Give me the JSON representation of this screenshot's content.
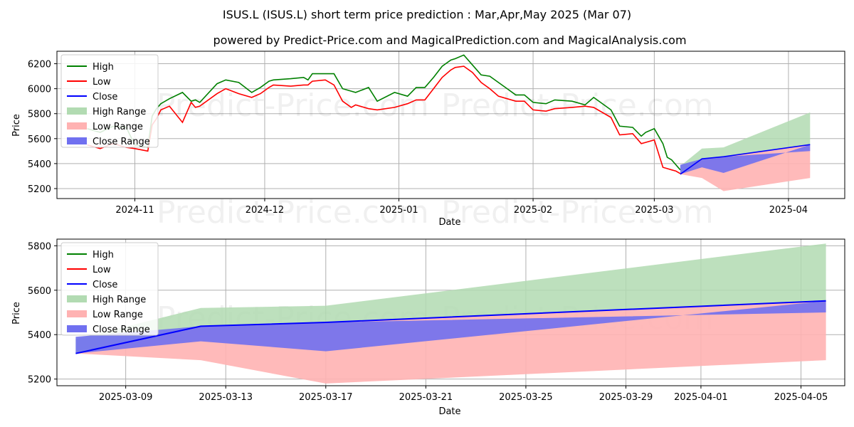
{
  "figure": {
    "title": "ISUS.L (ISUS.L) short term price prediction : Mar,Apr,May 2025 (Mar 07)",
    "subtitle": "powered by Predict-Price.com and MagicalPrediction.com and MagicalAnalysis.com",
    "watermark": "Predict-Price.com"
  },
  "colors": {
    "high": "#008000",
    "low": "#ff0000",
    "close": "#0000ff",
    "high_range": "#b2dbb2",
    "low_range": "#ffb2b2",
    "close_range": "#7070f0"
  },
  "legend": [
    "High",
    "Low",
    "Close",
    "High Range",
    "Low Range",
    "Close Range"
  ],
  "chart_data": [
    {
      "type": "line",
      "xlabel": "Date",
      "ylabel": "Price",
      "grid": true,
      "legend_position": "top-left",
      "xlim": [
        "2024-10-14",
        "2025-04-14"
      ],
      "ylim": [
        5120,
        6300
      ],
      "x_ticks": [
        "2024-11",
        "2024-12",
        "2025-01",
        "2025-02",
        "2025-03",
        "2025-04"
      ],
      "x_tick_dates": [
        "2024-11-01",
        "2024-12-01",
        "2025-01-01",
        "2025-02-01",
        "2025-03-01",
        "2025-04-01"
      ],
      "y_ticks": [
        5200,
        5400,
        5600,
        5800,
        6000,
        6200
      ],
      "history": {
        "dates": [
          "2024-10-21",
          "2024-10-24",
          "2024-10-27",
          "2024-10-30",
          "2024-11-01",
          "2024-11-04",
          "2024-11-05",
          "2024-11-06",
          "2024-11-07",
          "2024-11-09",
          "2024-11-12",
          "2024-11-14",
          "2024-11-15",
          "2024-11-16",
          "2024-11-20",
          "2024-11-22",
          "2024-11-25",
          "2024-11-28",
          "2024-11-30",
          "2024-12-02",
          "2024-12-03",
          "2024-12-07",
          "2024-12-10",
          "2024-12-11",
          "2024-12-12",
          "2024-12-15",
          "2024-12-17",
          "2024-12-19",
          "2024-12-21",
          "2024-12-22",
          "2024-12-25",
          "2024-12-27",
          "2024-12-31",
          "2025-01-03",
          "2025-01-05",
          "2025-01-07",
          "2025-01-09",
          "2025-01-11",
          "2025-01-13",
          "2025-01-14",
          "2025-01-16",
          "2025-01-18",
          "2025-01-20",
          "2025-01-22",
          "2025-01-24",
          "2025-01-26",
          "2025-01-28",
          "2025-01-30",
          "2025-02-01",
          "2025-02-04",
          "2025-02-06",
          "2025-02-10",
          "2025-02-13",
          "2025-02-15",
          "2025-02-19",
          "2025-02-21",
          "2025-02-24",
          "2025-02-26",
          "2025-02-27",
          "2025-03-01",
          "2025-03-03",
          "2025-03-04",
          "2025-03-05",
          "2025-03-06",
          "2025-03-07"
        ],
        "high": [
          5680,
          5650,
          5700,
          5690,
          5550,
          5530,
          5780,
          5840,
          5880,
          5920,
          5970,
          5900,
          5910,
          5890,
          6040,
          6070,
          6050,
          5970,
          6010,
          6060,
          6070,
          6080,
          6090,
          6070,
          6120,
          6120,
          6120,
          6000,
          5980,
          5970,
          6010,
          5900,
          5970,
          5940,
          6010,
          6010,
          6090,
          6180,
          6230,
          6240,
          6270,
          6190,
          6110,
          6100,
          6050,
          6000,
          5950,
          5950,
          5890,
          5880,
          5910,
          5900,
          5870,
          5930,
          5830,
          5700,
          5690,
          5620,
          5650,
          5680,
          5560,
          5450,
          5430,
          5390,
          5350
        ],
        "low": [
          5550,
          5520,
          5560,
          5530,
          5520,
          5500,
          5710,
          5760,
          5830,
          5860,
          5730,
          5890,
          5850,
          5860,
          5960,
          6000,
          5960,
          5930,
          5960,
          6010,
          6030,
          6020,
          6030,
          6030,
          6060,
          6070,
          6030,
          5900,
          5850,
          5870,
          5840,
          5830,
          5850,
          5880,
          5910,
          5910,
          6000,
          6090,
          6150,
          6170,
          6180,
          6130,
          6050,
          6000,
          5940,
          5920,
          5900,
          5900,
          5830,
          5820,
          5840,
          5850,
          5860,
          5850,
          5770,
          5630,
          5640,
          5560,
          5570,
          5590,
          5370,
          5360,
          5350,
          5340,
          5320
        ]
      }
    },
    {
      "type": "area",
      "xlabel": "Date",
      "ylabel": "Price",
      "grid": true,
      "legend_position": "top-left",
      "xlim": [
        "2025-03-06 06:00",
        "2025-04-06 18:00"
      ],
      "ylim": [
        5170,
        5830
      ],
      "x_ticks": [
        "2025-03-09",
        "2025-03-13",
        "2025-03-17",
        "2025-03-21",
        "2025-03-25",
        "2025-03-29",
        "2025-04-01",
        "2025-04-05"
      ],
      "y_ticks": [
        5200,
        5400,
        5600,
        5800
      ],
      "forecast": {
        "dates": [
          "2025-03-07",
          "2025-03-12",
          "2025-03-17",
          "2025-04-06"
        ],
        "close": [
          5315,
          5438,
          5455,
          5552
        ],
        "close_upper": [
          5390,
          5438,
          5455,
          5500
        ],
        "close_lower": [
          5315,
          5370,
          5325,
          5552
        ],
        "high_upper": [
          5380,
          5520,
          5530,
          5810
        ],
        "low_lower": [
          5315,
          5285,
          5180,
          5285
        ]
      }
    }
  ]
}
